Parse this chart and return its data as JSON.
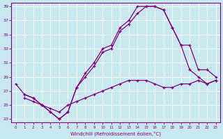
{
  "xlabel": "Windchill (Refroidissement éolien,°C)",
  "color": "#800080",
  "bg_color": "#c8e8f0",
  "grid_color": "#ffffff",
  "ylim": [
    23,
    39
  ],
  "yticks": [
    23,
    25,
    27,
    29,
    31,
    33,
    35,
    37,
    39
  ],
  "xlim": [
    0,
    23
  ],
  "xticks": [
    0,
    1,
    2,
    3,
    4,
    5,
    6,
    7,
    8,
    9,
    10,
    11,
    12,
    13,
    14,
    15,
    16,
    17,
    18,
    19,
    20,
    21,
    22,
    23
  ],
  "line1_x": [
    0,
    1,
    2,
    3,
    4,
    5,
    6,
    7,
    8,
    9,
    10,
    11,
    12,
    13,
    14,
    15,
    16,
    17,
    18,
    19,
    20,
    21,
    22,
    23
  ],
  "line1_y": [
    28.0,
    26.5,
    26.0,
    25.0,
    24.0,
    23.0,
    24.0,
    27.5,
    29.5,
    31.0,
    33.0,
    33.5,
    36.0,
    37.0,
    39.0,
    39.0,
    39.0,
    38.5,
    36.0,
    33.5,
    30.0,
    29.0,
    28.0,
    28.5
  ],
  "line2_x": [
    1,
    2,
    3,
    4,
    5,
    6,
    7,
    8,
    9,
    10,
    11,
    12,
    13,
    14,
    15,
    16,
    17,
    18,
    19,
    20,
    21,
    22,
    23
  ],
  "line2_y": [
    26.5,
    26.0,
    25.0,
    24.0,
    23.0,
    24.0,
    27.5,
    29.0,
    30.5,
    32.5,
    33.0,
    35.5,
    36.5,
    38.0,
    39.0,
    39.0,
    38.5,
    36.0,
    33.5,
    33.5,
    30.0,
    30.0,
    29.0
  ],
  "line3_x": [
    1,
    2,
    3,
    4,
    5,
    6,
    7,
    8,
    9,
    10,
    11,
    12,
    13,
    14,
    15,
    16,
    17,
    18,
    19,
    20,
    21,
    22,
    23
  ],
  "line3_y": [
    26.0,
    25.5,
    25.0,
    24.5,
    24.0,
    25.0,
    25.5,
    26.0,
    26.5,
    27.0,
    27.5,
    28.0,
    28.5,
    28.5,
    28.5,
    28.0,
    27.5,
    27.5,
    28.0,
    28.0,
    28.5,
    28.0,
    28.5
  ]
}
